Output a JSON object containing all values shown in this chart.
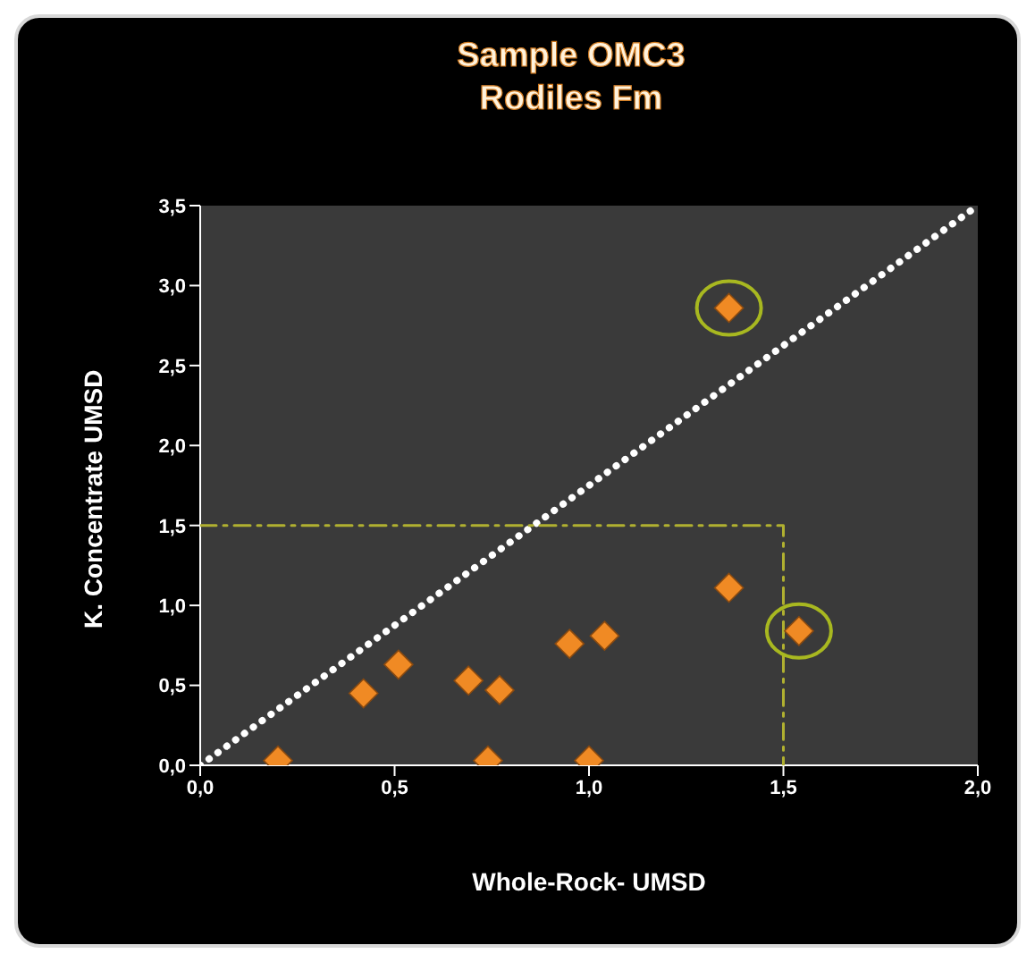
{
  "chart_data": {
    "type": "scatter",
    "title": "Sample OMC3\nRodiles Fm",
    "xlabel": "Whole-Rock-  UMSD",
    "ylabel": "K. Concentrate UMSD",
    "xlim": [
      0,
      2
    ],
    "ylim": [
      0,
      3.5
    ],
    "xticks": [
      {
        "value": 0,
        "label": "0,0"
      },
      {
        "value": 0.5,
        "label": "0,5"
      },
      {
        "value": 1,
        "label": "1,0"
      },
      {
        "value": 1.5,
        "label": "1,5"
      },
      {
        "value": 2,
        "label": "2,0"
      }
    ],
    "yticks": [
      {
        "value": 0,
        "label": "0,0"
      },
      {
        "value": 0.5,
        "label": "0,5"
      },
      {
        "value": 1,
        "label": "1,0"
      },
      {
        "value": 1.5,
        "label": "1,5"
      },
      {
        "value": 2,
        "label": "2,0"
      },
      {
        "value": 2.5,
        "label": "2,5"
      },
      {
        "value": 3,
        "label": "3,0"
      },
      {
        "value": 3.5,
        "label": "3,5"
      }
    ],
    "series": [
      {
        "type": "line",
        "color": "#ffffff",
        "line_style": "dotted",
        "marker": "none",
        "x": [
          0,
          2
        ],
        "values": [
          0,
          3.5
        ]
      },
      {
        "type": "line",
        "color": "#b0b030",
        "line_style": "dashed",
        "marker": "none",
        "x": [
          0,
          1.5,
          1.5
        ],
        "values": [
          1.5,
          1.5,
          0
        ]
      },
      {
        "color": "#f08a24",
        "marker": "diamond",
        "x": [
          0.2,
          0.42,
          0.51,
          0.69,
          0.77,
          0.74,
          0.95,
          1.04,
          1,
          1.36,
          1.54,
          1.36
        ],
        "values": [
          0.03,
          0.45,
          0.63,
          0.53,
          0.47,
          0.03,
          0.76,
          0.81,
          0.03,
          1.11,
          0.84,
          2.86
        ]
      },
      {
        "type": "scatter",
        "color": "#a8b820",
        "marker": "circle",
        "x": [
          1.36,
          1.54
        ],
        "values": [
          2.86,
          0.84
        ]
      }
    ]
  }
}
